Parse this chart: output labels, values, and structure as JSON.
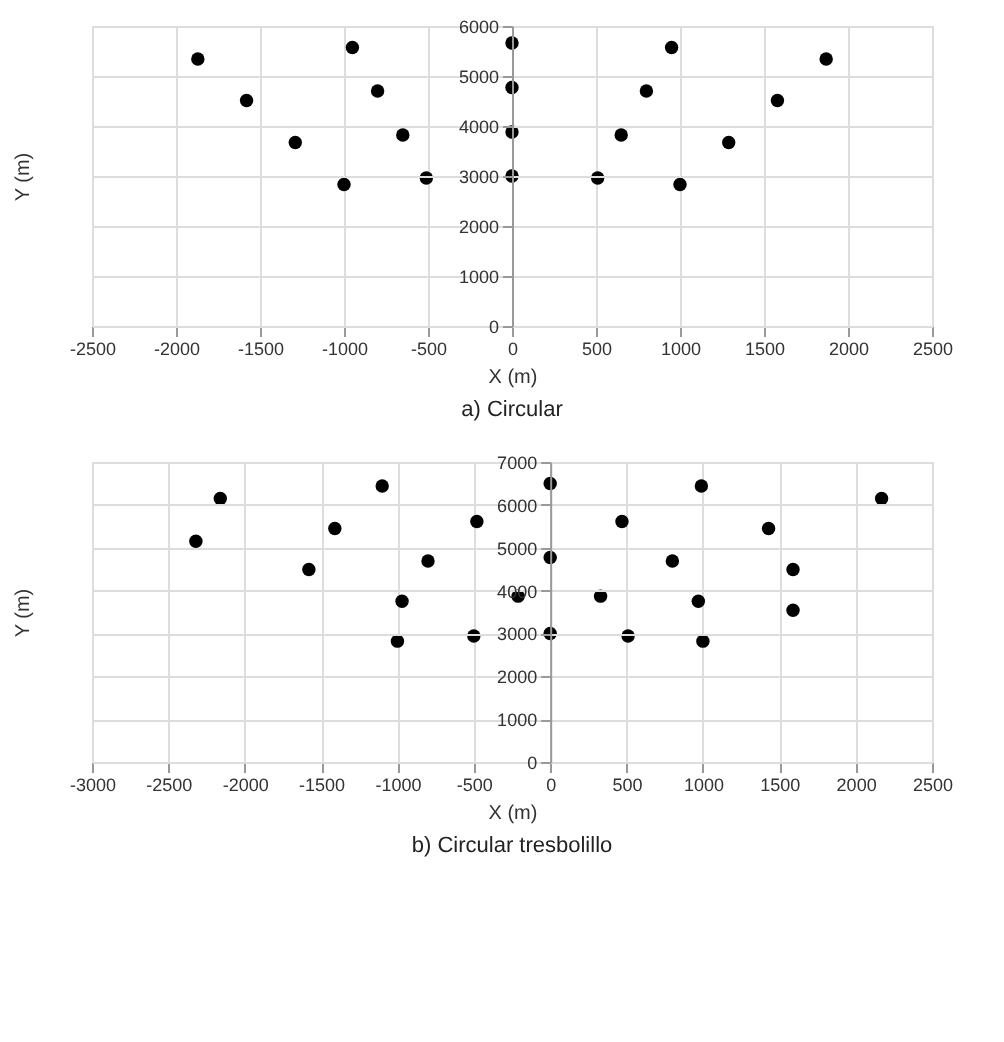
{
  "chart_data": [
    {
      "type": "scatter",
      "title": "a) Circular",
      "xlabel": "X (m)",
      "ylabel": "Y (m)",
      "marker": "circle",
      "grid": true,
      "xlim": [
        -2500,
        2500
      ],
      "xticks": [
        -2500,
        -2000,
        -1500,
        -1000,
        -500,
        0,
        500,
        1000,
        1500,
        2000,
        2500
      ],
      "ylim": [
        0,
        6000
      ],
      "yticks": [
        0,
        1000,
        2000,
        3000,
        4000,
        5000,
        6000
      ],
      "series": [
        {
          "color": "#000000",
          "x": [
            -1870,
            -1580,
            -1290,
            -1000,
            -950,
            -800,
            -650,
            -510,
            0,
            0,
            0,
            0,
            950,
            800,
            650,
            510,
            1000,
            1870,
            1580,
            1290
          ],
          "values": [
            5340,
            4510,
            3670,
            2830,
            5570,
            4700,
            3820,
            2960,
            5660,
            4770,
            3880,
            3000,
            5570,
            4700,
            3820,
            2960,
            2830,
            5340,
            4510,
            3670
          ]
        }
      ]
    },
    {
      "type": "scatter",
      "title": "b) Circular tresbolillo",
      "xlabel": "X (m)",
      "ylabel": "Y (m)",
      "marker": "circle",
      "grid": true,
      "xlim": [
        -3000,
        2500
      ],
      "xticks": [
        -3000,
        -2500,
        -2000,
        -1500,
        -1000,
        -500,
        0,
        500,
        1000,
        1500,
        2000,
        2500
      ],
      "ylim": [
        0,
        7000
      ],
      "yticks": [
        0,
        1000,
        2000,
        3000,
        4000,
        5000,
        6000,
        7000
      ],
      "series": [
        {
          "color": "#000000",
          "x": [
            -2320,
            -2160,
            -1580,
            -1410,
            -1100,
            -1000,
            -970,
            -800,
            -500,
            -480,
            -210,
            0,
            0,
            0,
            330,
            470,
            510,
            800,
            970,
            1000,
            990,
            1430,
            1590,
            1590,
            2170
          ],
          "values": [
            5150,
            6150,
            4490,
            5450,
            6440,
            2820,
            3750,
            4690,
            2940,
            5610,
            3870,
            6500,
            4770,
            3000,
            3870,
            5610,
            2940,
            4690,
            3750,
            2820,
            6440,
            5450,
            4490,
            3540,
            6150
          ]
        }
      ]
    }
  ]
}
